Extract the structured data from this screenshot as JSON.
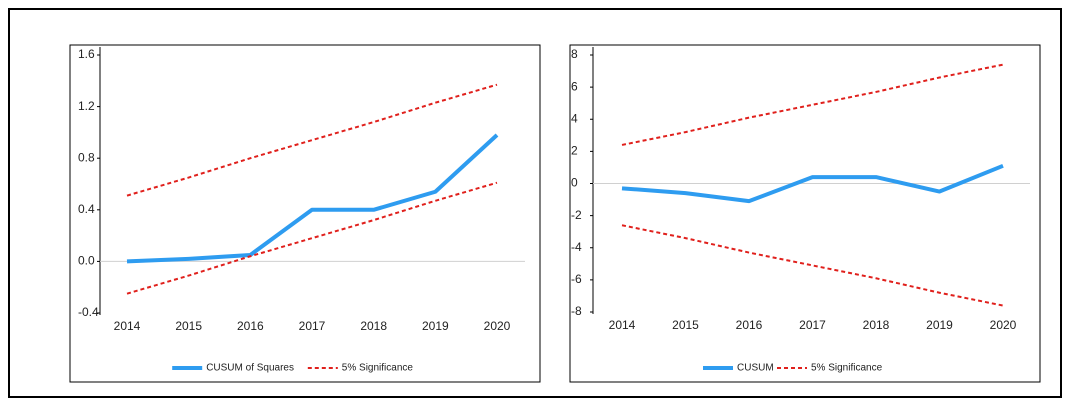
{
  "chart_data": [
    {
      "type": "line",
      "categories": [
        "2014",
        "2015",
        "2016",
        "2017",
        "2018",
        "2019",
        "2020"
      ],
      "ylim": [
        -0.4,
        1.6
      ],
      "yticks": [
        {
          "value": -0.4,
          "label": "-0.4"
        },
        {
          "value": 0,
          "label": "0.0"
        },
        0.4,
        0.8,
        1.2,
        1.6
      ],
      "legend": "bottom",
      "series": [
        {
          "name": "CUSUM of Squares",
          "color": "#2e9cf0",
          "style": "solid",
          "values": [
            0.0,
            0.02,
            0.05,
            0.4,
            0.4,
            0.54,
            0.98
          ]
        },
        {
          "name": "5% Significance",
          "color": "#e0201c",
          "style": "dashed",
          "values": [
            0.51,
            0.65,
            0.8,
            0.94,
            1.08,
            1.23,
            1.37
          ]
        },
        {
          "name": "5% Significance",
          "color": "#e0201c",
          "style": "dashed",
          "values": [
            -0.25,
            -0.11,
            0.04,
            0.18,
            0.32,
            0.47,
            0.61
          ]
        }
      ]
    },
    {
      "type": "line",
      "categories": [
        "2014",
        "2015",
        "2016",
        "2017",
        "2018",
        "2019",
        "2020"
      ],
      "ylim": [
        -8,
        8
      ],
      "yticks": [
        -8,
        -6,
        -4,
        -2,
        0,
        2,
        4,
        6,
        8
      ],
      "legend": "bottom",
      "series": [
        {
          "name": "CUSUM",
          "color": "#2e9cf0",
          "style": "solid",
          "values": [
            -0.3,
            -0.6,
            -1.1,
            0.4,
            0.4,
            -0.5,
            1.1
          ]
        },
        {
          "name": "5% Significance",
          "color": "#e0201c",
          "style": "dashed",
          "values": [
            2.4,
            3.2,
            4.1,
            4.9,
            5.7,
            6.6,
            7.4
          ]
        },
        {
          "name": "5% Significance",
          "color": "#e0201c",
          "style": "dashed",
          "values": [
            -2.6,
            -3.4,
            -4.3,
            -5.1,
            -5.9,
            -6.8,
            -7.6
          ]
        }
      ]
    }
  ]
}
